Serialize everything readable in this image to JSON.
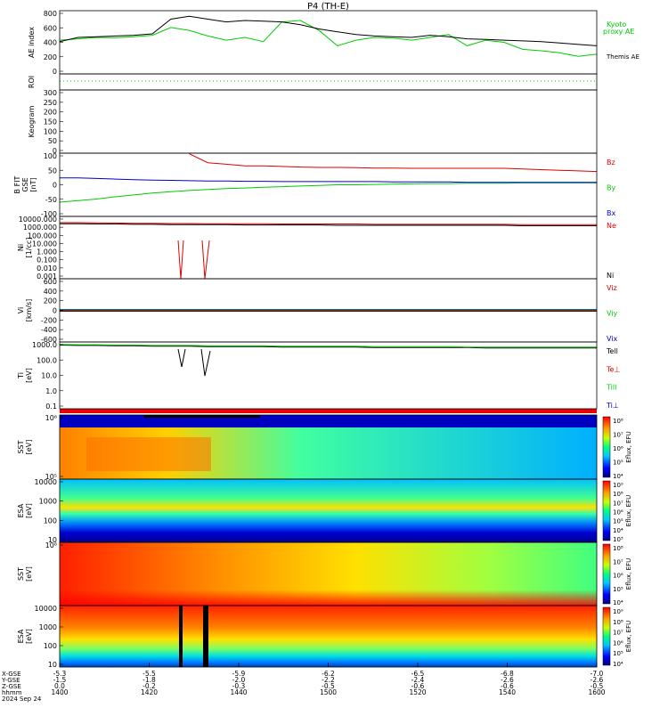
{
  "title": "P4 (TH-E)",
  "date_label": "2024 Sep 24",
  "colors": {
    "black": "#000000",
    "red": "#dd0000",
    "green": "#00cc00",
    "blue": "#0000cc"
  },
  "chart_data": [
    {
      "type": "line",
      "panel": "ae",
      "ylabel": "AE index",
      "ylim": [
        -100,
        800
      ],
      "yticks": [
        "800",
        "600",
        "400",
        "200",
        "0"
      ],
      "series": [
        {
          "name": "Kyoto",
          "name2": "proxy AE",
          "color": "#00cc00",
          "values": [
            380,
            400,
            420,
            415,
            430,
            450,
            560,
            520,
            440,
            380,
            420,
            360,
            640,
            660,
            520,
            300,
            380,
            420,
            410,
            380,
            420,
            460,
            300,
            380,
            350,
            250,
            230,
            200,
            150,
            180
          ]
        },
        {
          "name": "Themis AE",
          "color": "#000000",
          "values": [
            360,
            420,
            430,
            440,
            450,
            470,
            680,
            720,
            680,
            640,
            660,
            650,
            640,
            600,
            540,
            500,
            460,
            440,
            430,
            420,
            450,
            430,
            400,
            390,
            380,
            370,
            360,
            340,
            320,
            300
          ]
        }
      ]
    },
    {
      "type": "line",
      "panel": "roi",
      "ylabel": "ROI"
    },
    {
      "type": "line",
      "panel": "keogram",
      "ylabel": "Keogram",
      "ylim": [
        0,
        300
      ],
      "yticks": [
        "300",
        "250",
        "200",
        "150",
        "100",
        "50",
        "0"
      ]
    },
    {
      "type": "line",
      "panel": "bfgm",
      "ylabel": "B FIT",
      "ylabel2": "GSE",
      "ylabel3": "[nT]",
      "ylim": [
        -100,
        100
      ],
      "yticks": [
        "100",
        "50",
        "0",
        "-50",
        "-100"
      ],
      "series": [
        {
          "name": "Bz",
          "color": "#dd0000",
          "values": [
            null,
            null,
            null,
            null,
            null,
            null,
            null,
            98,
            70,
            65,
            60,
            60,
            58,
            56,
            55,
            55,
            54,
            53,
            53,
            52,
            52,
            52,
            52,
            52,
            52,
            50,
            48,
            46,
            44,
            42
          ]
        },
        {
          "name": "By",
          "color": "#00cc00",
          "values": [
            -55,
            -50,
            -45,
            -38,
            -32,
            -26,
            -22,
            -18,
            -15,
            -12,
            -10,
            -8,
            -6,
            -4,
            -2,
            0,
            0,
            1,
            2,
            3,
            4,
            4,
            5,
            5,
            5,
            6,
            6,
            6,
            6,
            6
          ]
        },
        {
          "name": "Bx",
          "color": "#0000cc",
          "values": [
            22,
            22,
            20,
            18,
            16,
            15,
            14,
            13,
            12,
            12,
            11,
            11,
            10,
            10,
            10,
            10,
            10,
            10,
            9,
            9,
            9,
            9,
            8,
            8,
            8,
            8,
            8,
            8,
            8,
            8
          ]
        }
      ]
    },
    {
      "type": "line",
      "panel": "ni",
      "ylabel": "Ni",
      "ylabel2": "[1/cc]",
      "yscale": "log",
      "ylim": [
        0.001,
        10000
      ],
      "yticks": [
        "10000.000",
        "1000.000",
        "100.000",
        "10.000",
        "1.000",
        "0.100",
        "0.010",
        "0.001"
      ],
      "series": [
        {
          "name": "Ne",
          "color": "#dd0000",
          "values": [
            2000,
            2000,
            1900,
            1800,
            1700,
            1700,
            1600,
            1600,
            1500,
            1500,
            1500,
            1500,
            1400,
            1400,
            1400,
            1400,
            1400,
            1300,
            1300,
            1300,
            1300,
            1300,
            1300,
            1300,
            1300,
            1200,
            1200,
            1200,
            1200,
            1200
          ]
        },
        {
          "name": "Ni",
          "color": "#000000",
          "values": [
            1500,
            1500,
            1400,
            1400,
            1300,
            1300,
            1200,
            1200,
            1200,
            1200,
            1100,
            1100,
            1100,
            1100,
            1100,
            1000,
            1000,
            1000,
            1000,
            1000,
            1000,
            1000,
            1000,
            1000,
            1000,
            900,
            900,
            900,
            900,
            900
          ]
        }
      ]
    },
    {
      "type": "line",
      "panel": "vi",
      "ylabel": "Vi",
      "ylabel2": "[km/s]",
      "ylim": [
        -600,
        600
      ],
      "yticks": [
        "600",
        "400",
        "200",
        "0",
        "-200",
        "-400",
        "-600"
      ],
      "series": [
        {
          "name": "Viz",
          "color": "#dd0000",
          "values": [
            0
          ]
        },
        {
          "name": "Viy",
          "color": "#00cc00",
          "values": [
            0
          ]
        },
        {
          "name": "Vix",
          "color": "#0000cc",
          "values": [
            0
          ]
        }
      ]
    },
    {
      "type": "line",
      "panel": "ti",
      "ylabel": "Ti",
      "ylabel2": "[eV]",
      "yscale": "log",
      "ylim": [
        0.05,
        3000
      ],
      "yticks": [
        "1000.0",
        "100.0",
        "10.0",
        "1.0",
        "0.1"
      ],
      "series": [
        {
          "name": "Tell",
          "color": "#000000",
          "values": [
            1800,
            1700,
            1700,
            1600,
            1600,
            1500,
            1500,
            1500,
            1400,
            1400,
            1400,
            1400,
            1300,
            1300,
            1300,
            1300,
            1300,
            1200,
            1200,
            1200,
            1200,
            1200,
            1200,
            1100,
            1100,
            1100,
            1100,
            1100,
            1100,
            1100
          ]
        },
        {
          "name": "Te⊥",
          "color": "#dd0000",
          "values": []
        },
        {
          "name": "Till",
          "color": "#00cc00",
          "values": [
            2000,
            1900,
            1900,
            1800,
            1800,
            1700,
            1700,
            1700,
            1600,
            1600,
            1600,
            1600,
            1500,
            1500,
            1500,
            1500,
            1500,
            1400,
            1400,
            1400,
            1400,
            1400,
            1300,
            1300,
            1300,
            1300,
            1300,
            1300,
            1300,
            1300
          ]
        },
        {
          "name": "Ti⊥",
          "color": "#0000cc",
          "values": []
        }
      ]
    },
    {
      "type": "heatmap",
      "panel": "sst_e",
      "ylabel": "SST",
      "ylabel2": "[eV]",
      "yticks": [
        "10⁶",
        "10⁵"
      ],
      "colorbar": {
        "label": "Eflux, EFU",
        "ticks": [
          "10⁸",
          "10⁷",
          "10⁶",
          "10⁵",
          "10⁴"
        ]
      }
    },
    {
      "type": "heatmap",
      "panel": "esa_e",
      "ylabel": "ESA",
      "ylabel2": "[eV]",
      "yticks": [
        "10000",
        "1000",
        "100",
        "10"
      ],
      "colorbar": {
        "label": "Eflux, EFU",
        "ticks": [
          "10⁹",
          "10⁸",
          "10⁷",
          "10⁶",
          "10⁵",
          "10⁴",
          "10³"
        ]
      }
    },
    {
      "type": "heatmap",
      "panel": "sst_i",
      "ylabel": "SST",
      "ylabel2": "[eV]",
      "yticks": [
        "10⁶"
      ],
      "colorbar": {
        "label": "Eflux, EFU",
        "ticks": [
          "10⁸",
          "10⁷",
          "10⁶",
          "10⁵",
          "10⁴"
        ]
      }
    },
    {
      "type": "heatmap",
      "panel": "esa_i",
      "ylabel": "ESA",
      "ylabel2": "[eV]",
      "yticks": [
        "10000",
        "1000",
        "100",
        "10"
      ],
      "colorbar": {
        "label": "Eflux, EFU",
        "ticks": [
          "10⁹",
          "10⁸",
          "10⁷",
          "10⁶",
          "10⁵",
          "10⁴"
        ]
      }
    }
  ],
  "x_axis": {
    "row_labels": [
      "X-GSE",
      "Y-GSE",
      "Z-GSE",
      "hhmm",
      "2024 Sep 24"
    ],
    "rows": [
      [
        "-5.3",
        "-5.5",
        "-5.9",
        "-6.2",
        "-6.5",
        "-6.8",
        "-7.0"
      ],
      [
        "-1.5",
        "-1.8",
        "-2.0",
        "-2.2",
        "-2.4",
        "-2.6",
        "-2.6"
      ],
      [
        "0.0",
        "-0.2",
        "-0.3",
        "-0.5",
        "-0.6",
        "-0.6",
        "-0.5"
      ],
      [
        "1400",
        "1420",
        "1440",
        "1500",
        "1520",
        "1540",
        "1600"
      ]
    ]
  }
}
